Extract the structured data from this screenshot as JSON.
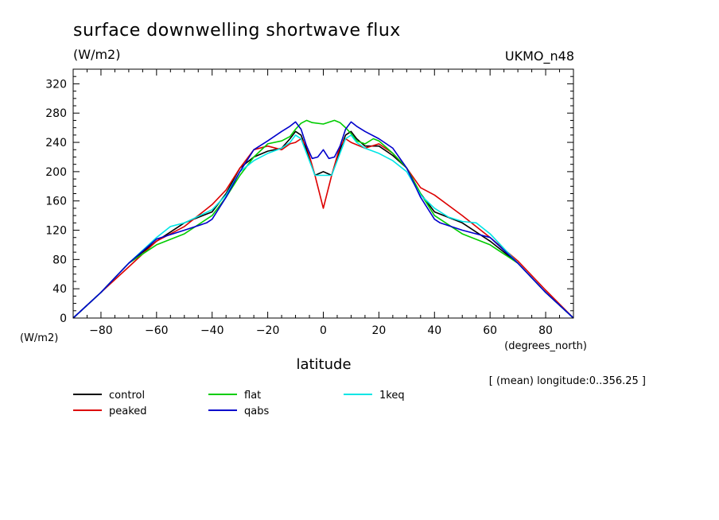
{
  "chart_data": {
    "type": "line",
    "title": "surface downwelling shortwave flux",
    "units": "(W/m2)",
    "source": "UKMO_n48",
    "ylabel": "(W/m2)",
    "xunits": "(degrees_north)",
    "xlabel": "latitude",
    "annotation": "[ (mean) longitude:0..356.25 ]",
    "xlim": [
      -90,
      90
    ],
    "ylim": [
      0,
      340
    ],
    "xticks": [
      -80,
      -60,
      -40,
      -20,
      0,
      20,
      40,
      60,
      80
    ],
    "yticks": [
      0,
      40,
      80,
      120,
      160,
      200,
      240,
      280,
      320
    ],
    "series": [
      {
        "name": "control",
        "color": "#000000",
        "x": [
          -90,
          -80,
          -70,
          -60,
          -50,
          -40,
          -35,
          -30,
          -25,
          -20,
          -15,
          -12,
          -10,
          -8,
          -6,
          -3,
          0,
          3,
          6,
          8,
          10,
          12,
          15,
          20,
          25,
          30,
          35,
          40,
          50,
          60,
          70,
          80,
          90
        ],
        "y": [
          0,
          35,
          75,
          105,
          130,
          145,
          170,
          205,
          220,
          228,
          232,
          245,
          255,
          250,
          230,
          195,
          200,
          195,
          230,
          250,
          255,
          245,
          235,
          235,
          222,
          205,
          170,
          145,
          130,
          105,
          75,
          35,
          0
        ]
      },
      {
        "name": "peaked",
        "color": "#dd0000",
        "x": [
          -90,
          -80,
          -70,
          -60,
          -50,
          -40,
          -35,
          -30,
          -25,
          -20,
          -15,
          -12,
          -10,
          -8,
          -6,
          -3,
          0,
          3,
          6,
          8,
          10,
          15,
          20,
          25,
          30,
          35,
          40,
          50,
          60,
          70,
          80,
          90
        ],
        "y": [
          0,
          35,
          70,
          105,
          125,
          155,
          175,
          205,
          230,
          235,
          230,
          238,
          240,
          245,
          235,
          195,
          150,
          195,
          235,
          245,
          240,
          232,
          238,
          225,
          205,
          178,
          168,
          140,
          110,
          78,
          38,
          0
        ]
      },
      {
        "name": "flat",
        "color": "#00cc00",
        "x": [
          -90,
          -80,
          -70,
          -60,
          -50,
          -40,
          -35,
          -30,
          -25,
          -20,
          -15,
          -12,
          -10,
          -8,
          -6,
          -4,
          0,
          4,
          6,
          8,
          10,
          12,
          15,
          18,
          20,
          25,
          30,
          35,
          40,
          50,
          60,
          70,
          80,
          90
        ],
        "y": [
          0,
          35,
          75,
          100,
          115,
          140,
          165,
          195,
          220,
          238,
          242,
          248,
          258,
          266,
          270,
          267,
          265,
          270,
          267,
          260,
          252,
          242,
          238,
          245,
          242,
          225,
          205,
          170,
          140,
          115,
          100,
          75,
          35,
          0
        ]
      },
      {
        "name": "1keq",
        "color": "#00e5e5",
        "x": [
          -90,
          -80,
          -70,
          -60,
          -55,
          -50,
          -40,
          -35,
          -30,
          -25,
          -20,
          -15,
          -12,
          -10,
          -8,
          -6,
          -3,
          0,
          3,
          6,
          8,
          10,
          12,
          15,
          20,
          25,
          30,
          35,
          40,
          45,
          50,
          55,
          60,
          70,
          80,
          90
        ],
        "y": [
          0,
          35,
          75,
          110,
          125,
          130,
          148,
          168,
          200,
          215,
          225,
          232,
          240,
          250,
          245,
          225,
          195,
          195,
          195,
          225,
          245,
          250,
          240,
          232,
          225,
          215,
          200,
          168,
          150,
          138,
          132,
          130,
          115,
          75,
          35,
          0
        ]
      },
      {
        "name": "qabs",
        "color": "#0000cc",
        "x": [
          -90,
          -80,
          -70,
          -60,
          -50,
          -42,
          -40,
          -35,
          -30,
          -25,
          -20,
          -15,
          -12,
          -10,
          -8,
          -6,
          -4,
          -2,
          0,
          2,
          4,
          6,
          8,
          10,
          12,
          15,
          20,
          25,
          30,
          35,
          40,
          42,
          50,
          60,
          70,
          80,
          90
        ],
        "y": [
          0,
          35,
          75,
          108,
          120,
          130,
          135,
          165,
          200,
          230,
          242,
          255,
          262,
          268,
          258,
          235,
          218,
          220,
          230,
          218,
          220,
          235,
          258,
          268,
          262,
          255,
          245,
          232,
          205,
          165,
          135,
          130,
          120,
          110,
          75,
          35,
          0
        ]
      }
    ],
    "legend_placement": "bottom-left"
  }
}
